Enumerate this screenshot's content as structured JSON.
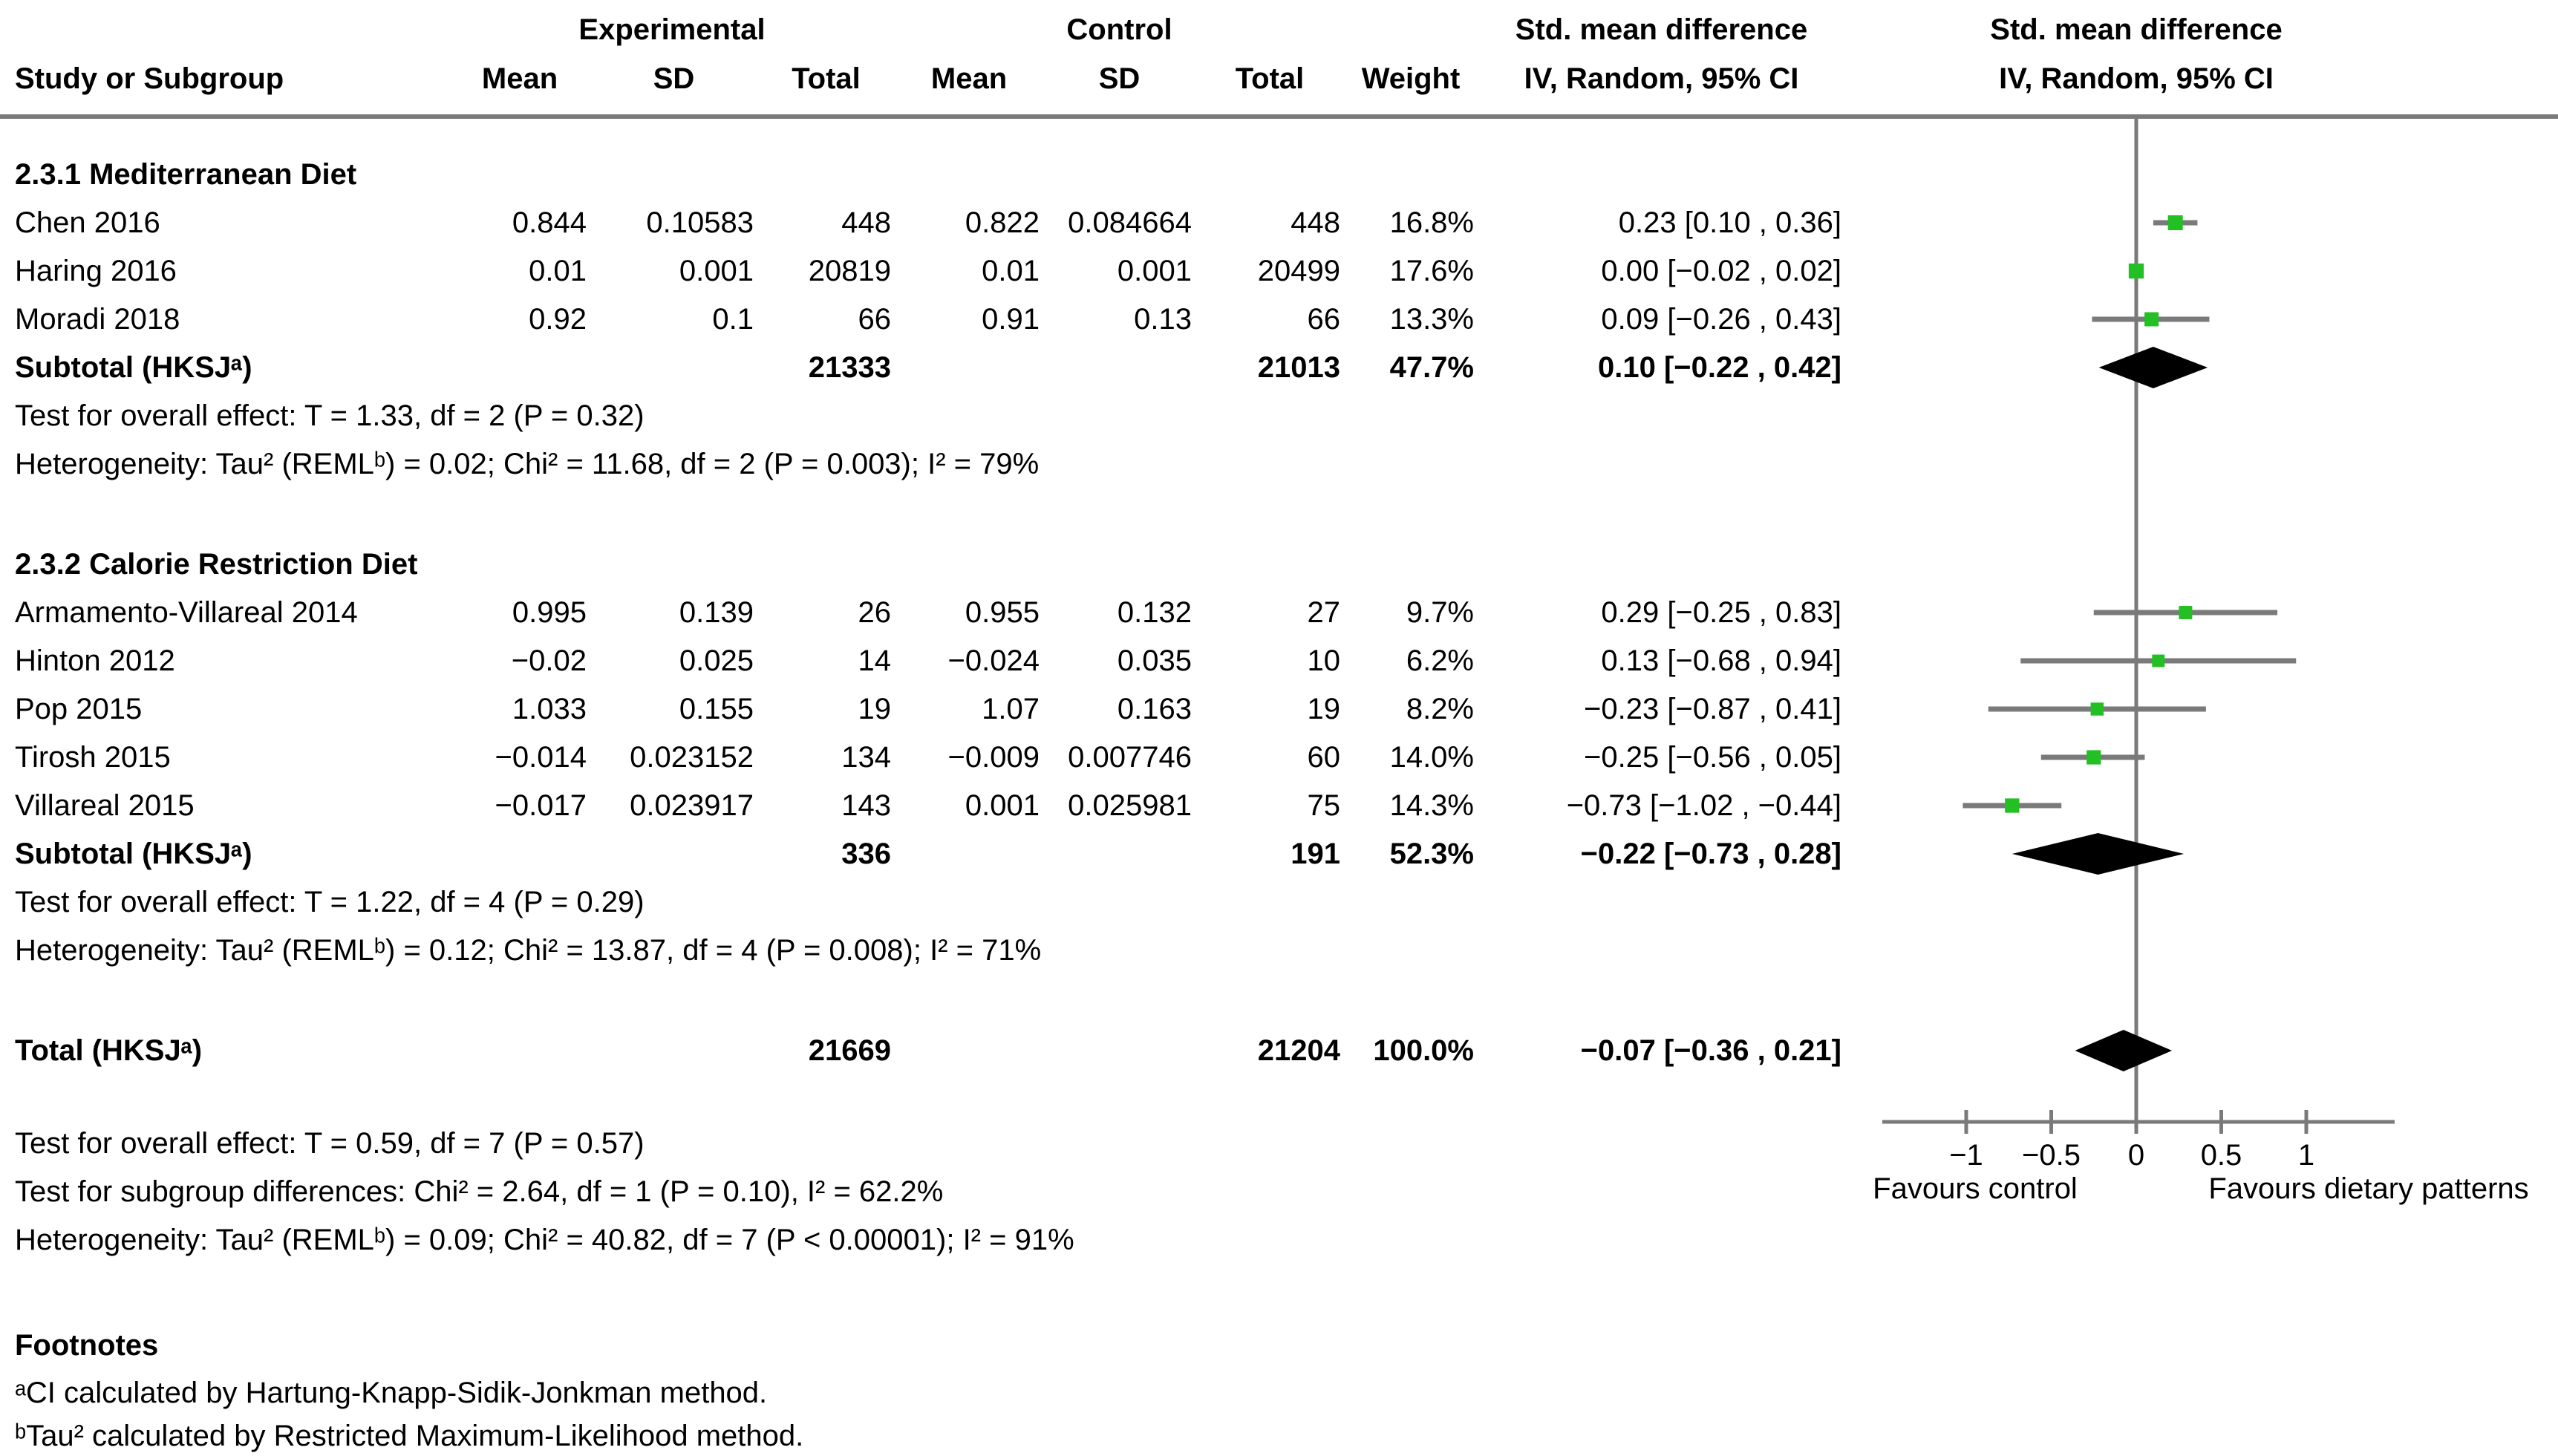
{
  "header": {
    "study_col": "Study or Subgroup",
    "experimental_group": "Experimental",
    "control_group": "Control",
    "mean": "Mean",
    "sd": "SD",
    "total": "Total",
    "weight": "Weight",
    "effect_title": "Std. mean difference",
    "effect_method": "IV, Random, 95% CI"
  },
  "rows": [
    {
      "id": "sec_med",
      "type": "section",
      "label": "2.3.1 Mediterranean Diet"
    },
    {
      "id": "chen2016",
      "type": "study",
      "study": "Chen 2016",
      "mean_e": "0.844",
      "sd_e": "0.10583",
      "total_e": "448",
      "mean_c": "0.822",
      "sd_c": "0.084664",
      "total_c": "448",
      "weight": "16.8%",
      "ci": "0.23 [0.10 , 0.36]"
    },
    {
      "id": "haring2016",
      "type": "study",
      "study": "Haring 2016",
      "mean_e": "0.01",
      "sd_e": "0.001",
      "total_e": "20819",
      "mean_c": "0.01",
      "sd_c": "0.001",
      "total_c": "20499",
      "weight": "17.6%",
      "ci": "0.00 [−0.02 , 0.02]"
    },
    {
      "id": "moradi2018",
      "type": "study",
      "study": "Moradi 2018",
      "mean_e": "0.92",
      "sd_e": "0.1",
      "total_e": "66",
      "mean_c": "0.91",
      "sd_c": "0.13",
      "total_c": "66",
      "weight": "13.3%",
      "ci": "0.09 [−0.26 , 0.43]"
    },
    {
      "id": "subtotal_med",
      "type": "subtotal",
      "study": "Subtotal (HKSJᵃ)",
      "total_e": "21333",
      "total_c": "21013",
      "weight": "47.7%",
      "ci": "0.10 [−0.22 , 0.42]"
    },
    {
      "id": "note_effect_med",
      "type": "note",
      "text": "Test for overall effect: T = 1.33, df = 2 (P = 0.32)"
    },
    {
      "id": "note_het_med",
      "type": "note",
      "text": "Heterogeneity: Tau² (REMLᵇ) = 0.02; Chi² = 11.68, df = 2 (P = 0.003); I² = 79%"
    },
    {
      "id": "sec_cal",
      "type": "section",
      "label": "2.3.2 Calorie Restriction Diet"
    },
    {
      "id": "armamento2014",
      "type": "study",
      "study": "Armamento-Villareal 2014",
      "mean_e": "0.995",
      "sd_e": "0.139",
      "total_e": "26",
      "mean_c": "0.955",
      "sd_c": "0.132",
      "total_c": "27",
      "weight": "9.7%",
      "ci": "0.29 [−0.25 , 0.83]"
    },
    {
      "id": "hinton2012",
      "type": "study",
      "study": "Hinton 2012",
      "mean_e": "−0.02",
      "sd_e": "0.025",
      "total_e": "14",
      "mean_c": "−0.024",
      "sd_c": "0.035",
      "total_c": "10",
      "weight": "6.2%",
      "ci": "0.13 [−0.68 , 0.94]"
    },
    {
      "id": "pop2015",
      "type": "study",
      "study": "Pop 2015",
      "mean_e": "1.033",
      "sd_e": "0.155",
      "total_e": "19",
      "mean_c": "1.07",
      "sd_c": "0.163",
      "total_c": "19",
      "weight": "8.2%",
      "ci": "−0.23 [−0.87 , 0.41]"
    },
    {
      "id": "tirosh2015",
      "type": "study",
      "study": "Tirosh 2015",
      "mean_e": "−0.014",
      "sd_e": "0.023152",
      "total_e": "134",
      "mean_c": "−0.009",
      "sd_c": "0.007746",
      "total_c": "60",
      "weight": "14.0%",
      "ci": "−0.25 [−0.56 , 0.05]"
    },
    {
      "id": "villareal2015",
      "type": "study",
      "study": "Villareal 2015",
      "mean_e": "−0.017",
      "sd_e": "0.023917",
      "total_e": "143",
      "mean_c": "0.001",
      "sd_c": "0.025981",
      "total_c": "75",
      "weight": "14.3%",
      "ci": "−0.73 [−1.02 , −0.44]"
    },
    {
      "id": "subtotal_cal",
      "type": "subtotal",
      "study": "Subtotal (HKSJᵃ)",
      "total_e": "336",
      "total_c": "191",
      "weight": "52.3%",
      "ci": "−0.22 [−0.73 , 0.28]"
    },
    {
      "id": "note_effect_cal",
      "type": "note",
      "text": "Test for overall effect: T = 1.22, df = 4 (P = 0.29)"
    },
    {
      "id": "note_het_cal",
      "type": "note",
      "text": "Heterogeneity: Tau² (REMLᵇ) = 0.12; Chi² = 13.87, df = 4 (P = 0.008); I² = 71%"
    },
    {
      "id": "total",
      "type": "total",
      "study": "Total (HKSJᵃ)",
      "total_e": "21669",
      "total_c": "21204",
      "weight": "100.0%",
      "ci": "−0.07 [−0.36 , 0.21]"
    },
    {
      "id": "note_effect_total",
      "type": "note",
      "text": "Test for overall effect: T = 0.59, df = 7 (P = 0.57)"
    },
    {
      "id": "note_subgroup",
      "type": "note",
      "text": "Test for subgroup differences: Chi² = 2.64, df = 1 (P = 0.10), I² = 62.2%"
    },
    {
      "id": "note_het_total",
      "type": "note",
      "text": "Heterogeneity: Tau² (REMLᵇ) = 0.09; Chi² = 40.82, df = 7 (P < 0.00001); I² = 91%"
    }
  ],
  "footnotes": {
    "heading": "Footnotes",
    "a": "ᵃCI calculated by Hartung-Knapp-Sidik-Jonkman method.",
    "b": "ᵇTau² calculated by Restricted Maximum-Likelihood method."
  },
  "colors": {
    "marker_green": "#22C022",
    "line_gray": "#7A7A7A",
    "diamond_black": "#000000"
  },
  "chart_data": {
    "type": "forest",
    "effect_measure": "Std. mean difference",
    "model": "IV, Random, 95% CI",
    "x_axis": {
      "min": -1.5,
      "max": 1.52,
      "ticks": [
        {
          "v": -1,
          "label": "−1"
        },
        {
          "v": -0.5,
          "label": "−0.5"
        },
        {
          "v": 0,
          "label": "0"
        },
        {
          "v": 0.5,
          "label": "0.5"
        },
        {
          "v": 1,
          "label": "1"
        }
      ],
      "left_label": "Favours control",
      "right_label": "Favours dietary patterns"
    },
    "subgroups": [
      {
        "name": "2.3.1 Mediterranean Diet",
        "studies": [
          {
            "id": "chen2016",
            "study": "Chen 2016",
            "smd": 0.23,
            "ci_low": 0.1,
            "ci_high": 0.36,
            "weight_pct": 16.8
          },
          {
            "id": "haring2016",
            "study": "Haring 2016",
            "smd": 0.0,
            "ci_low": -0.02,
            "ci_high": 0.02,
            "weight_pct": 17.6
          },
          {
            "id": "moradi2018",
            "study": "Moradi 2018",
            "smd": 0.09,
            "ci_low": -0.26,
            "ci_high": 0.43,
            "weight_pct": 13.3
          }
        ],
        "subtotal": {
          "id": "subtotal_med",
          "smd": 0.1,
          "ci_low": -0.22,
          "ci_high": 0.42,
          "weight_pct": 47.7
        }
      },
      {
        "name": "2.3.2 Calorie Restriction Diet",
        "studies": [
          {
            "id": "armamento2014",
            "study": "Armamento-Villareal 2014",
            "smd": 0.29,
            "ci_low": -0.25,
            "ci_high": 0.83,
            "weight_pct": 9.7
          },
          {
            "id": "hinton2012",
            "study": "Hinton 2012",
            "smd": 0.13,
            "ci_low": -0.68,
            "ci_high": 0.94,
            "weight_pct": 6.2
          },
          {
            "id": "pop2015",
            "study": "Pop 2015",
            "smd": -0.23,
            "ci_low": -0.87,
            "ci_high": 0.41,
            "weight_pct": 8.2
          },
          {
            "id": "tirosh2015",
            "study": "Tirosh 2015",
            "smd": -0.25,
            "ci_low": -0.56,
            "ci_high": 0.05,
            "weight_pct": 14.0
          },
          {
            "id": "villareal2015",
            "study": "Villareal 2015",
            "smd": -0.73,
            "ci_low": -1.02,
            "ci_high": -0.44,
            "weight_pct": 14.3
          }
        ],
        "subtotal": {
          "id": "subtotal_cal",
          "smd": -0.22,
          "ci_low": -0.73,
          "ci_high": 0.28,
          "weight_pct": 52.3
        }
      }
    ],
    "total": {
      "id": "total",
      "smd": -0.07,
      "ci_low": -0.36,
      "ci_high": 0.21,
      "weight_pct": 100.0
    }
  }
}
